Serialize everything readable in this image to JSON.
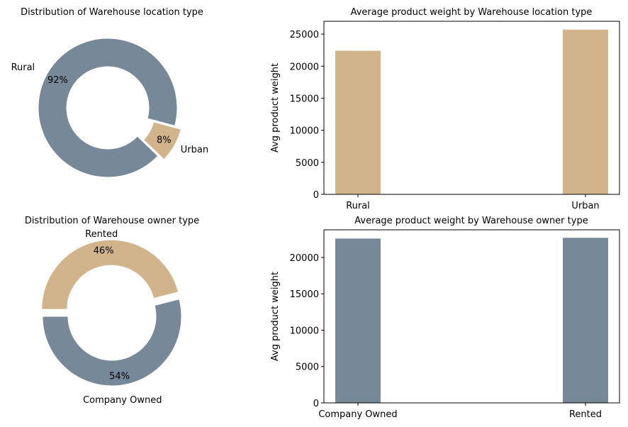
{
  "colors": {
    "slate": "#778899",
    "tan": "#D2B48C"
  },
  "chart_data": [
    {
      "type": "pie",
      "style": "donut",
      "title": "Distribution of Warehouse location type",
      "slices": [
        {
          "label": "Rural",
          "value": 92,
          "pct_label": "92%",
          "color": "#778899",
          "exploded": false
        },
        {
          "label": "Urban",
          "value": 8,
          "pct_label": "8%",
          "color": "#D2B48C",
          "exploded": true
        }
      ]
    },
    {
      "type": "bar",
      "title": "Average product weight by Warehouse location type",
      "categories": [
        "Rural",
        "Urban"
      ],
      "values": [
        22400,
        25700
      ],
      "color": "#D2B48C",
      "xlabel": "",
      "ylabel": "Avg product weight",
      "ylim": [
        0,
        27000
      ],
      "yticks": [
        0,
        5000,
        10000,
        15000,
        20000,
        25000
      ],
      "ytick_labels": [
        "0",
        "5000",
        "10000",
        "15000",
        "20000",
        "25000"
      ]
    },
    {
      "type": "pie",
      "style": "donut",
      "title": "Distribution of Warehouse owner type",
      "slices": [
        {
          "label": "Company Owned",
          "value": 54,
          "pct_label": "54%",
          "color": "#778899",
          "exploded": false
        },
        {
          "label": "Rented",
          "value": 46,
          "pct_label": "46%",
          "color": "#D2B48C",
          "exploded": true
        }
      ]
    },
    {
      "type": "bar",
      "title": "Average product weight by Warehouse owner type",
      "categories": [
        "Company Owned",
        "Rented"
      ],
      "values": [
        22600,
        22700
      ],
      "color": "#778899",
      "xlabel": "",
      "ylabel": "Avg product weight",
      "ylim": [
        0,
        23800
      ],
      "yticks": [
        0,
        5000,
        10000,
        15000,
        20000
      ],
      "ytick_labels": [
        "0",
        "5000",
        "10000",
        "15000",
        "20000"
      ]
    }
  ]
}
